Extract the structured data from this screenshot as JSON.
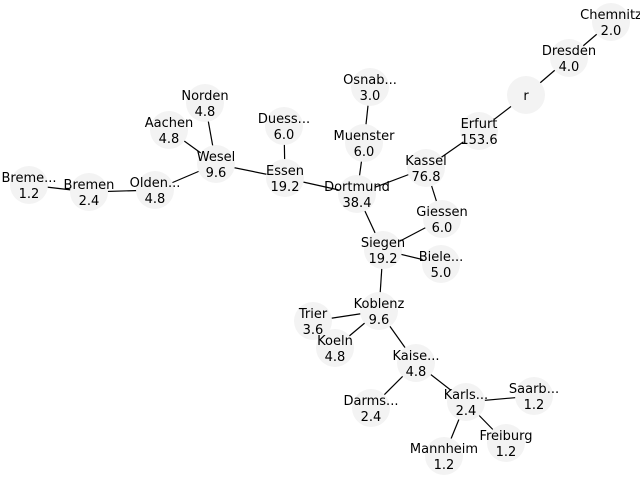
{
  "graph": {
    "colors": {
      "edge": "#000000",
      "node_fill": "#f3f3f3",
      "text": "#000000"
    },
    "nodes": [
      {
        "id": "r",
        "name": "r",
        "value": ""
      },
      {
        "id": "chemnitz",
        "name": "Chemnitz",
        "value": "2.0"
      },
      {
        "id": "dresden",
        "name": "Dresden",
        "value": "4.0"
      },
      {
        "id": "erfurt",
        "name": "Erfurt",
        "value": "153.6"
      },
      {
        "id": "kassel",
        "name": "Kassel",
        "value": "76.8"
      },
      {
        "id": "giessen",
        "name": "Giessen",
        "value": "6.0"
      },
      {
        "id": "siegen",
        "name": "Siegen",
        "value": "19.2"
      },
      {
        "id": "bielefeld",
        "name": "Biele...",
        "value": "5.0"
      },
      {
        "id": "dortmund",
        "name": "Dortmund",
        "value": "38.4"
      },
      {
        "id": "muenster",
        "name": "Muenster",
        "value": "6.0"
      },
      {
        "id": "osnabrueck",
        "name": "Osnab...",
        "value": "3.0"
      },
      {
        "id": "essen",
        "name": "Essen",
        "value": "19.2"
      },
      {
        "id": "duesseldorf",
        "name": "Duess...",
        "value": "6.0"
      },
      {
        "id": "wesel",
        "name": "Wesel",
        "value": "9.6"
      },
      {
        "id": "norden",
        "name": "Norden",
        "value": "4.8"
      },
      {
        "id": "aachen",
        "name": "Aachen",
        "value": "4.8"
      },
      {
        "id": "oldenburg",
        "name": "Olden...",
        "value": "4.8"
      },
      {
        "id": "bremen",
        "name": "Bremen",
        "value": "2.4"
      },
      {
        "id": "bremerhaven",
        "name": "Breme...",
        "value": "1.2"
      },
      {
        "id": "koblenz",
        "name": "Koblenz",
        "value": "9.6"
      },
      {
        "id": "trier",
        "name": "Trier",
        "value": "3.6"
      },
      {
        "id": "koeln",
        "name": "Koeln",
        "value": "4.8"
      },
      {
        "id": "kaiserslautern",
        "name": "Kaise...",
        "value": "4.8"
      },
      {
        "id": "darmstadt",
        "name": "Darms...",
        "value": "2.4"
      },
      {
        "id": "karlsruhe",
        "name": "Karls...",
        "value": "2.4"
      },
      {
        "id": "saarbruecken",
        "name": "Saarb...",
        "value": "1.2"
      },
      {
        "id": "mannheim",
        "name": "Mannheim",
        "value": "1.2"
      },
      {
        "id": "freiburg",
        "name": "Freiburg",
        "value": "1.2"
      }
    ],
    "edges": [
      [
        "r",
        "dresden"
      ],
      [
        "dresden",
        "chemnitz"
      ],
      [
        "r",
        "erfurt"
      ],
      [
        "erfurt",
        "kassel"
      ],
      [
        "kassel",
        "giessen"
      ],
      [
        "kassel",
        "dortmund"
      ],
      [
        "giessen",
        "siegen"
      ],
      [
        "siegen",
        "dortmund"
      ],
      [
        "siegen",
        "bielefeld"
      ],
      [
        "siegen",
        "koblenz"
      ],
      [
        "dortmund",
        "muenster"
      ],
      [
        "muenster",
        "osnabrueck"
      ],
      [
        "dortmund",
        "essen"
      ],
      [
        "essen",
        "duesseldorf"
      ],
      [
        "essen",
        "wesel"
      ],
      [
        "wesel",
        "norden"
      ],
      [
        "wesel",
        "aachen"
      ],
      [
        "wesel",
        "oldenburg"
      ],
      [
        "oldenburg",
        "bremen"
      ],
      [
        "bremen",
        "bremerhaven"
      ],
      [
        "koblenz",
        "trier"
      ],
      [
        "koblenz",
        "koeln"
      ],
      [
        "koblenz",
        "kaiserslautern"
      ],
      [
        "kaiserslautern",
        "darmstadt"
      ],
      [
        "kaiserslautern",
        "karlsruhe"
      ],
      [
        "karlsruhe",
        "saarbruecken"
      ],
      [
        "karlsruhe",
        "mannheim"
      ],
      [
        "karlsruhe",
        "freiburg"
      ]
    ]
  }
}
